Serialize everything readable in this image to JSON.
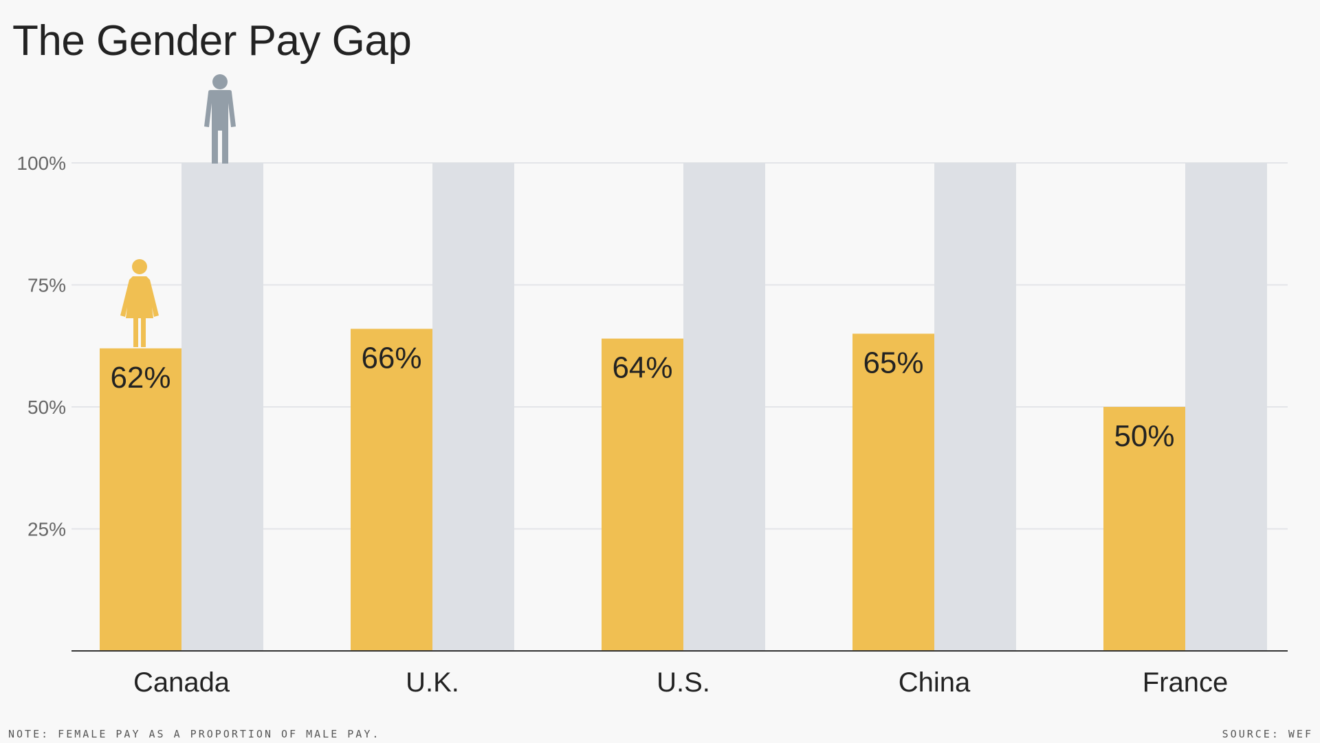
{
  "chart_data": {
    "type": "bar",
    "title": "The Gender Pay Gap",
    "categories": [
      "Canada",
      "U.K.",
      "U.S.",
      "China",
      "France"
    ],
    "series": [
      {
        "name": "Female pay",
        "values": [
          62,
          66,
          64,
          65,
          50
        ],
        "labels": [
          "62%",
          "66%",
          "64%",
          "65%",
          "50%"
        ],
        "color": "#f0bf52"
      },
      {
        "name": "Male pay",
        "values": [
          100,
          100,
          100,
          100,
          100
        ],
        "color": "#dde0e5"
      }
    ],
    "y_ticks": [
      25,
      50,
      75,
      100
    ],
    "y_tick_labels": [
      "25%",
      "50%",
      "75%",
      "100%"
    ],
    "ylim": [
      0,
      100
    ],
    "xlabel": "",
    "ylabel": "",
    "icons": {
      "female": "woman-icon",
      "male": "man-icon",
      "female_color": "#f0bf52",
      "male_color": "#939ea8"
    }
  },
  "footer": {
    "note": "NOTE: FEMALE PAY AS A PROPORTION OF MALE PAY.",
    "source": "SOURCE: WEF"
  }
}
